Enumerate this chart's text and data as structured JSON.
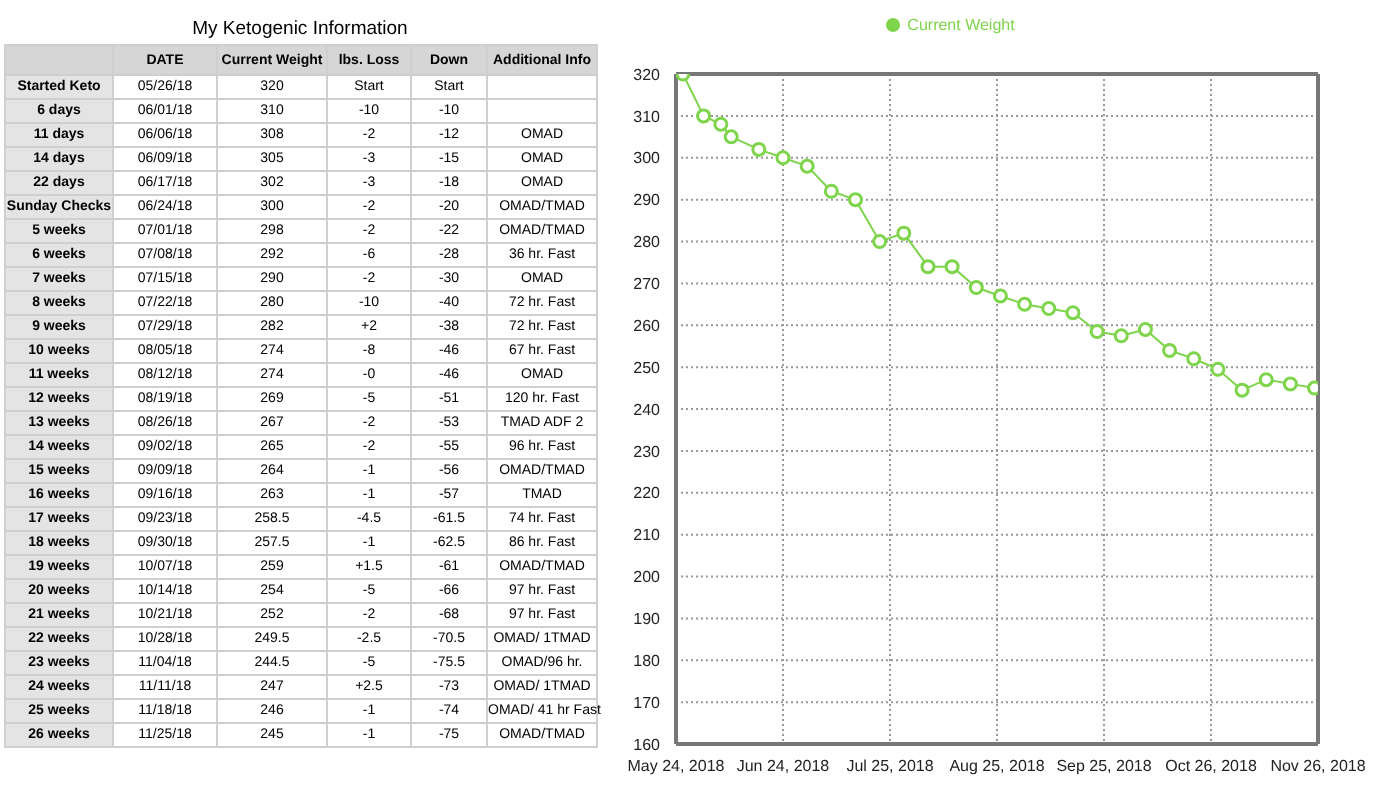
{
  "chart_data": [
    {
      "type": "other",
      "title": "My Ketogenic Information",
      "categories": [
        null,
        "DATE",
        "Current Weight",
        "lbs. Loss",
        "Down",
        "Additional Info"
      ],
      "y_categories": [
        "Started Keto",
        "6 days",
        "11 days",
        "14 days",
        "22 days",
        "Sunday Checks",
        "5 weeks",
        "6 weeks",
        "7 weeks",
        "8 weeks",
        "9 weeks",
        "10 weeks",
        "11 weeks",
        "12 weeks",
        "13 weeks",
        "14 weeks",
        "15 weeks",
        "16 weeks",
        "17 weeks",
        "18 weeks",
        "19 weeks",
        "20 weeks",
        "21 weeks",
        "22 weeks",
        "23 weeks",
        "24 weeks",
        "25 weeks",
        "26 weeks"
      ],
      "cell_labels": [
        [
          "05/26/18",
          "320",
          "Start",
          "Start",
          null
        ],
        [
          "06/01/18",
          "310",
          "-10",
          "-10",
          null
        ],
        [
          "06/06/18",
          "308",
          "-2",
          "-12",
          "OMAD"
        ],
        [
          "06/09/18",
          "305",
          "-3",
          "-15",
          "OMAD"
        ],
        [
          "06/17/18",
          "302",
          "-3",
          "-18",
          "OMAD"
        ],
        [
          "06/24/18",
          "300",
          "-2",
          "-20",
          "OMAD/TMAD"
        ],
        [
          "07/01/18",
          "298",
          "-2",
          "-22",
          "OMAD/TMAD"
        ],
        [
          "07/08/18",
          "292",
          "-6",
          "-28",
          "36 hr. Fast"
        ],
        [
          "07/15/18",
          "290",
          "-2",
          "-30",
          "OMAD"
        ],
        [
          "07/22/18",
          "280",
          "-10",
          "-40",
          "72 hr. Fast"
        ],
        [
          "07/29/18",
          "282",
          "+2",
          "-38",
          "72 hr. Fast"
        ],
        [
          "08/05/18",
          "274",
          "-8",
          "-46",
          "67 hr. Fast"
        ],
        [
          "08/12/18",
          "274",
          "-0",
          "-46",
          "OMAD"
        ],
        [
          "08/19/18",
          "269",
          "-5",
          "-51",
          "120 hr. Fast"
        ],
        [
          "08/26/18",
          "267",
          "-2",
          "-53",
          "TMAD ADF 2"
        ],
        [
          "09/02/18",
          "265",
          "-2",
          "-55",
          "96 hr. Fast"
        ],
        [
          "09/09/18",
          "264",
          "-1",
          "-56",
          "OMAD/TMAD"
        ],
        [
          "09/16/18",
          "263",
          "-1",
          "-57",
          "TMAD"
        ],
        [
          "09/23/18",
          "258.5",
          "-4.5",
          "-61.5",
          "74 hr. Fast"
        ],
        [
          "09/30/18",
          "257.5",
          "-1",
          "-62.5",
          "86 hr. Fast"
        ],
        [
          "10/07/18",
          "259",
          "+1.5",
          "-61",
          "OMAD/TMAD"
        ],
        [
          "10/14/18",
          "254",
          "-5",
          "-66",
          "97 hr. Fast"
        ],
        [
          "10/21/18",
          "252",
          "-2",
          "-68",
          "97 hr. Fast"
        ],
        [
          "10/28/18",
          "249.5",
          "-2.5",
          "-70.5",
          "OMAD/ 1TMAD"
        ],
        [
          "11/04/18",
          "244.5",
          "-5",
          "-75.5",
          "OMAD/96 hr."
        ],
        [
          "11/11/18",
          "247",
          "+2.5",
          "-73",
          "OMAD/ 1TMAD"
        ],
        [
          "11/18/18",
          "246",
          "-1",
          "-74",
          "OMAD/ 41 hr Fast"
        ],
        [
          "11/25/18",
          "245",
          "-1",
          "-75",
          "OMAD/TMAD"
        ]
      ]
    },
    {
      "type": "line",
      "x": [
        "2018-05-26",
        "2018-06-01",
        "2018-06-06",
        "2018-06-09",
        "2018-06-17",
        "2018-06-24",
        "2018-07-01",
        "2018-07-08",
        "2018-07-15",
        "2018-07-22",
        "2018-07-29",
        "2018-08-05",
        "2018-08-12",
        "2018-08-19",
        "2018-08-26",
        "2018-09-02",
        "2018-09-09",
        "2018-09-16",
        "2018-09-23",
        "2018-09-30",
        "2018-10-07",
        "2018-10-14",
        "2018-10-21",
        "2018-10-28",
        "2018-11-04",
        "2018-11-11",
        "2018-11-18",
        "2018-11-25"
      ],
      "series": [
        {
          "name": "Current Weight",
          "color": "#7ed44a",
          "values": [
            320,
            310,
            308,
            305,
            302,
            300,
            298,
            292,
            290,
            280,
            282,
            274,
            274,
            269,
            267,
            265,
            264,
            263,
            258.5,
            257.5,
            259,
            254,
            252,
            249.5,
            244.5,
            247,
            246,
            245
          ]
        }
      ],
      "xlim": [
        "2018-05-24",
        "2018-11-26"
      ],
      "xticks": [
        {
          "value": "2018-05-24",
          "label": "May 24, 2018"
        },
        {
          "value": "2018-06-24",
          "label": "Jun 24, 2018"
        },
        {
          "value": "2018-07-25",
          "label": "Jul 25, 2018"
        },
        {
          "value": "2018-08-25",
          "label": "Aug 25, 2018"
        },
        {
          "value": "2018-09-25",
          "label": "Sep 25, 2018"
        },
        {
          "value": "2018-10-26",
          "label": "Oct 26, 2018"
        },
        {
          "value": "2018-11-26",
          "label": "Nov 26, 2018"
        }
      ],
      "ylim": [
        160,
        320
      ],
      "yticks": [
        160,
        170,
        180,
        190,
        200,
        210,
        220,
        230,
        240,
        250,
        260,
        270,
        280,
        290,
        300,
        310,
        320
      ],
      "grid": true,
      "legend": "top",
      "marker": "circle",
      "line_style": "solid"
    }
  ]
}
